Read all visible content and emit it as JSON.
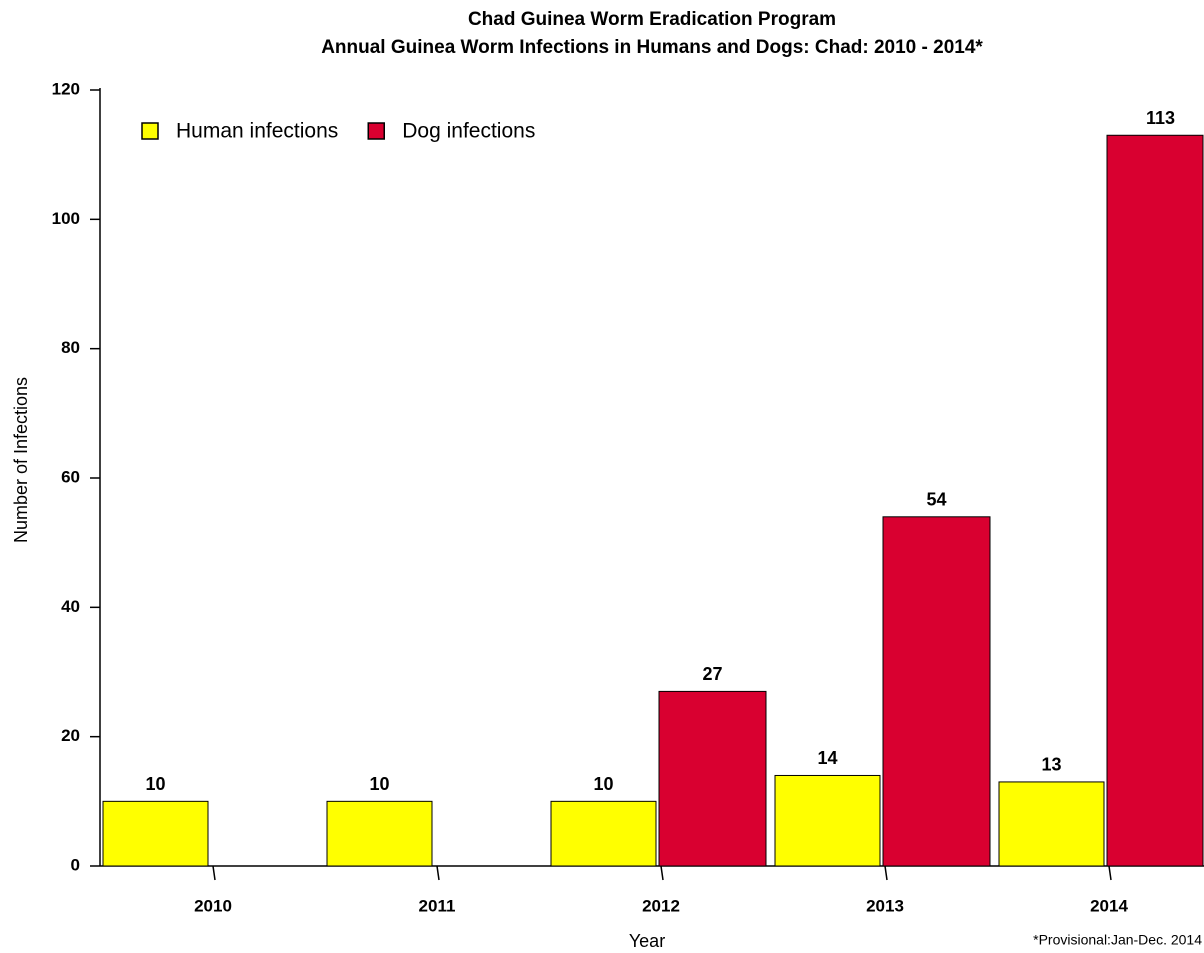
{
  "chart_data": {
    "type": "bar",
    "title": "Chad Guinea Worm Eradication Program",
    "subtitle": "Annual Guinea Worm Infections in Humans and Dogs: Chad: 2010 - 2014*",
    "x_label": "Year",
    "y_label": "Number of Infections",
    "annotation": "*Provisional:Jan-Dec. 2014",
    "categories": [
      "2010",
      "2011",
      "2012",
      "2013",
      "2014"
    ],
    "series": [
      {
        "name": "Human infections",
        "color": "#ffff00",
        "values": [
          10,
          10,
          10,
          14,
          13
        ]
      },
      {
        "name": "Dog infections",
        "color": "#d90030",
        "values": [
          null,
          null,
          27,
          54,
          113
        ]
      }
    ],
    "ylim": [
      0,
      120
    ],
    "yticks": [
      0,
      20,
      40,
      60,
      80,
      100,
      120
    ],
    "legend": "upper left",
    "grid": false
  }
}
